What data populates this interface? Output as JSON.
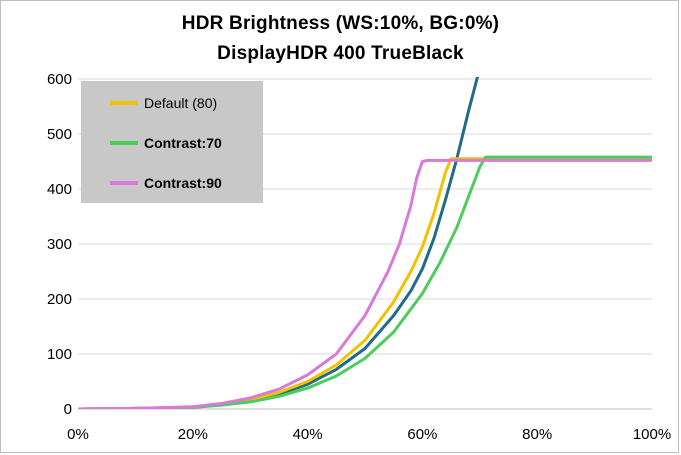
{
  "chart_data": {
    "type": "line",
    "title": "HDR Brightness (WS:10%, BG:0%)",
    "subtitle": "DisplayHDR 400 TrueBlack",
    "xlabel": "",
    "ylabel": "",
    "xlim": [
      0,
      100
    ],
    "ylim": [
      0,
      600
    ],
    "x_tick_labels": [
      "0%",
      "20%",
      "40%",
      "60%",
      "80%",
      "100%"
    ],
    "y_tick_labels": [
      "0",
      "100",
      "200",
      "300",
      "400",
      "500",
      "600"
    ],
    "grid": "horizontal",
    "legend_position": "top-left",
    "legend_background": "#c8c8c8",
    "series": [
      {
        "name": "",
        "color": "#1f6b8a",
        "x": [
          0,
          10,
          20,
          25,
          30,
          35,
          40,
          45,
          50,
          55,
          58,
          60,
          62,
          64,
          66,
          68,
          70
        ],
        "y": [
          0,
          1,
          3,
          8,
          15,
          27,
          45,
          72,
          110,
          170,
          215,
          255,
          310,
          380,
          455,
          540,
          620
        ]
      },
      {
        "name": "Default (80)",
        "color": "#f2c200",
        "x": [
          0,
          10,
          20,
          25,
          30,
          35,
          40,
          45,
          50,
          55,
          58,
          60,
          62,
          64,
          65,
          100
        ],
        "y": [
          0,
          1,
          3,
          9,
          17,
          30,
          50,
          80,
          125,
          195,
          250,
          295,
          355,
          430,
          455,
          455
        ]
      },
      {
        "name": "Contrast:70",
        "color": "#4ccc5c",
        "x": [
          0,
          10,
          20,
          25,
          30,
          35,
          40,
          45,
          50,
          55,
          60,
          63,
          66,
          68,
          70,
          71,
          100
        ],
        "y": [
          0,
          1,
          3,
          7,
          13,
          23,
          38,
          60,
          92,
          140,
          210,
          265,
          330,
          385,
          440,
          458,
          458
        ]
      },
      {
        "name": "Contrast:90",
        "color": "#d87ad8",
        "x": [
          0,
          10,
          20,
          25,
          30,
          35,
          40,
          45,
          50,
          54,
          56,
          58,
          59,
          60,
          61,
          100
        ],
        "y": [
          0,
          1,
          4,
          10,
          20,
          36,
          62,
          100,
          170,
          250,
          300,
          370,
          420,
          450,
          452,
          452
        ]
      }
    ]
  }
}
